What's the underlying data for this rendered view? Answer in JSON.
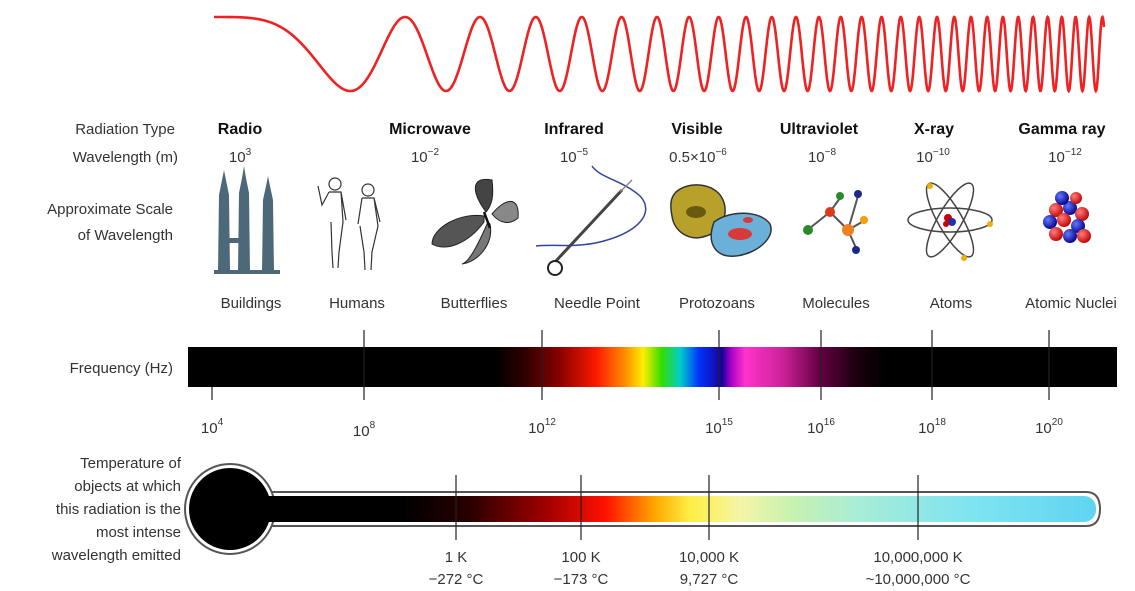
{
  "row_labels": {
    "radiation_type": "Radiation Type",
    "wavelength": "Wavelength (m)",
    "scale_line1": "Approximate Scale",
    "scale_line2": "of Wavelength",
    "frequency": "Frequency (Hz)",
    "temp_line1": "Temperature of",
    "temp_line2": "objects at which",
    "temp_line3": "this radiation is the",
    "temp_line4": "most intense",
    "temp_line5": "wavelength emitted"
  },
  "radiation_types": [
    {
      "name": "Radio",
      "wl_base": "10",
      "wl_exp": "3"
    },
    {
      "name": "Microwave",
      "wl_base": "10",
      "wl_exp": "−2"
    },
    {
      "name": "Infrared",
      "wl_base": "10",
      "wl_exp": "−5"
    },
    {
      "name": "Visible",
      "wl_base": "0.5×10",
      "wl_exp": "−6"
    },
    {
      "name": "Ultraviolet",
      "wl_base": "10",
      "wl_exp": "−8"
    },
    {
      "name": "X-ray",
      "wl_base": "10",
      "wl_exp": "−10"
    },
    {
      "name": "Gamma ray",
      "wl_base": "10",
      "wl_exp": "−12"
    }
  ],
  "scale_objects": [
    {
      "label": "Buildings",
      "icon": "buildings-icon"
    },
    {
      "label": "Humans",
      "icon": "humans-icon"
    },
    {
      "label": "Butterflies",
      "icon": "butterfly-icon"
    },
    {
      "label": "Needle Point",
      "icon": "needle-icon"
    },
    {
      "label": "Protozoans",
      "icon": "protozoan-icon"
    },
    {
      "label": "Molecules",
      "icon": "molecule-icon"
    },
    {
      "label": "Atoms",
      "icon": "atom-icon"
    },
    {
      "label": "Atomic Nuclei",
      "icon": "nucleus-icon"
    }
  ],
  "frequency_ticks": [
    {
      "base": "10",
      "exp": "4"
    },
    {
      "base": "10",
      "exp": "8"
    },
    {
      "base": "10",
      "exp": "12"
    },
    {
      "base": "10",
      "exp": "15"
    },
    {
      "base": "10",
      "exp": "16"
    },
    {
      "base": "10",
      "exp": "18"
    },
    {
      "base": "10",
      "exp": "20"
    }
  ],
  "temperatures": [
    {
      "kelvin": "1 K",
      "celsius": "−272 °C"
    },
    {
      "kelvin": "100 K",
      "celsius": "−173 °C"
    },
    {
      "kelvin": "10,000 K",
      "celsius": "9,727 °C"
    },
    {
      "kelvin": "10,000,000 K",
      "celsius": "~10,000,000 °C"
    }
  ],
  "colors": {
    "wave": "#ee2222",
    "bar_black": "#000000",
    "thermo_outline": "#555555"
  }
}
